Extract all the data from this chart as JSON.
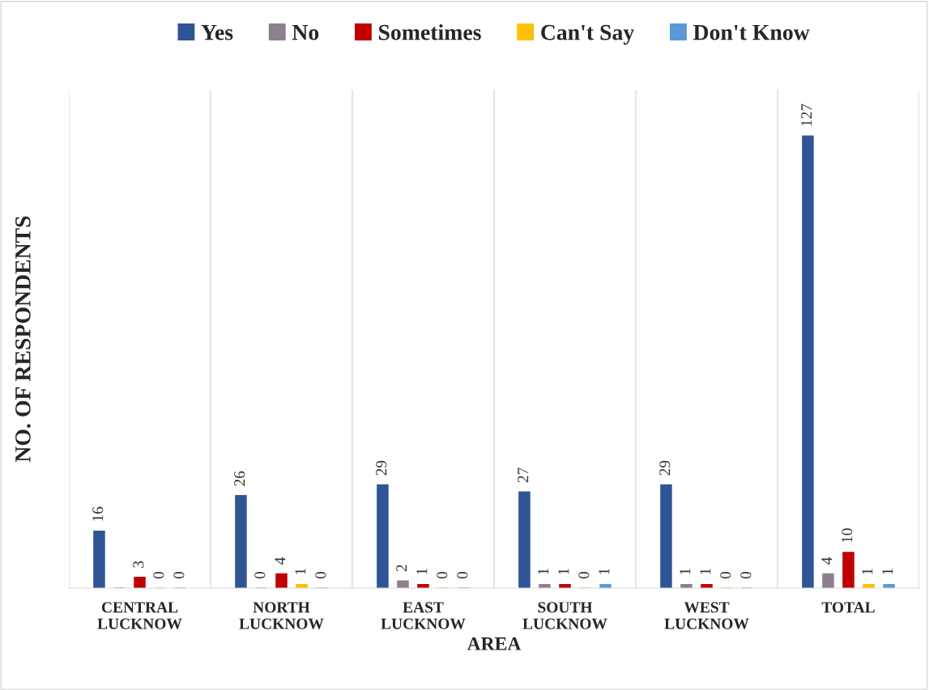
{
  "chart_data": {
    "type": "bar",
    "xlabel": "AREA",
    "ylabel": "NO. OF RESPONDENTS",
    "categories": [
      "CENTRAL LUCKNOW",
      "NORTH LUCKNOW",
      "EAST LUCKNOW",
      "SOUTH LUCKNOW",
      "WEST LUCKNOW",
      "TOTAL"
    ],
    "series": [
      {
        "name": "Yes",
        "color": "#2f5597",
        "values": [
          16,
          26,
          29,
          27,
          29,
          127
        ]
      },
      {
        "name": "No",
        "color": "#8e7f8e",
        "values": [
          0,
          0,
          2,
          1,
          1,
          4
        ],
        "value_labels": [
          null,
          "0",
          "2",
          "1",
          "1",
          "4"
        ]
      },
      {
        "name": "Sometimes",
        "color": "#c00000",
        "values": [
          3,
          4,
          1,
          1,
          1,
          10
        ]
      },
      {
        "name": "Can't Say",
        "color": "#ffc000",
        "values": [
          0,
          1,
          0,
          0,
          0,
          1
        ]
      },
      {
        "name": "Don't Know",
        "color": "#5b9bd5",
        "values": [
          0,
          0,
          0,
          1,
          0,
          1
        ]
      }
    ],
    "ylim": [
      0,
      140
    ],
    "tick_labels": "x",
    "grid": "x",
    "legend": "top",
    "data_labels": true
  }
}
